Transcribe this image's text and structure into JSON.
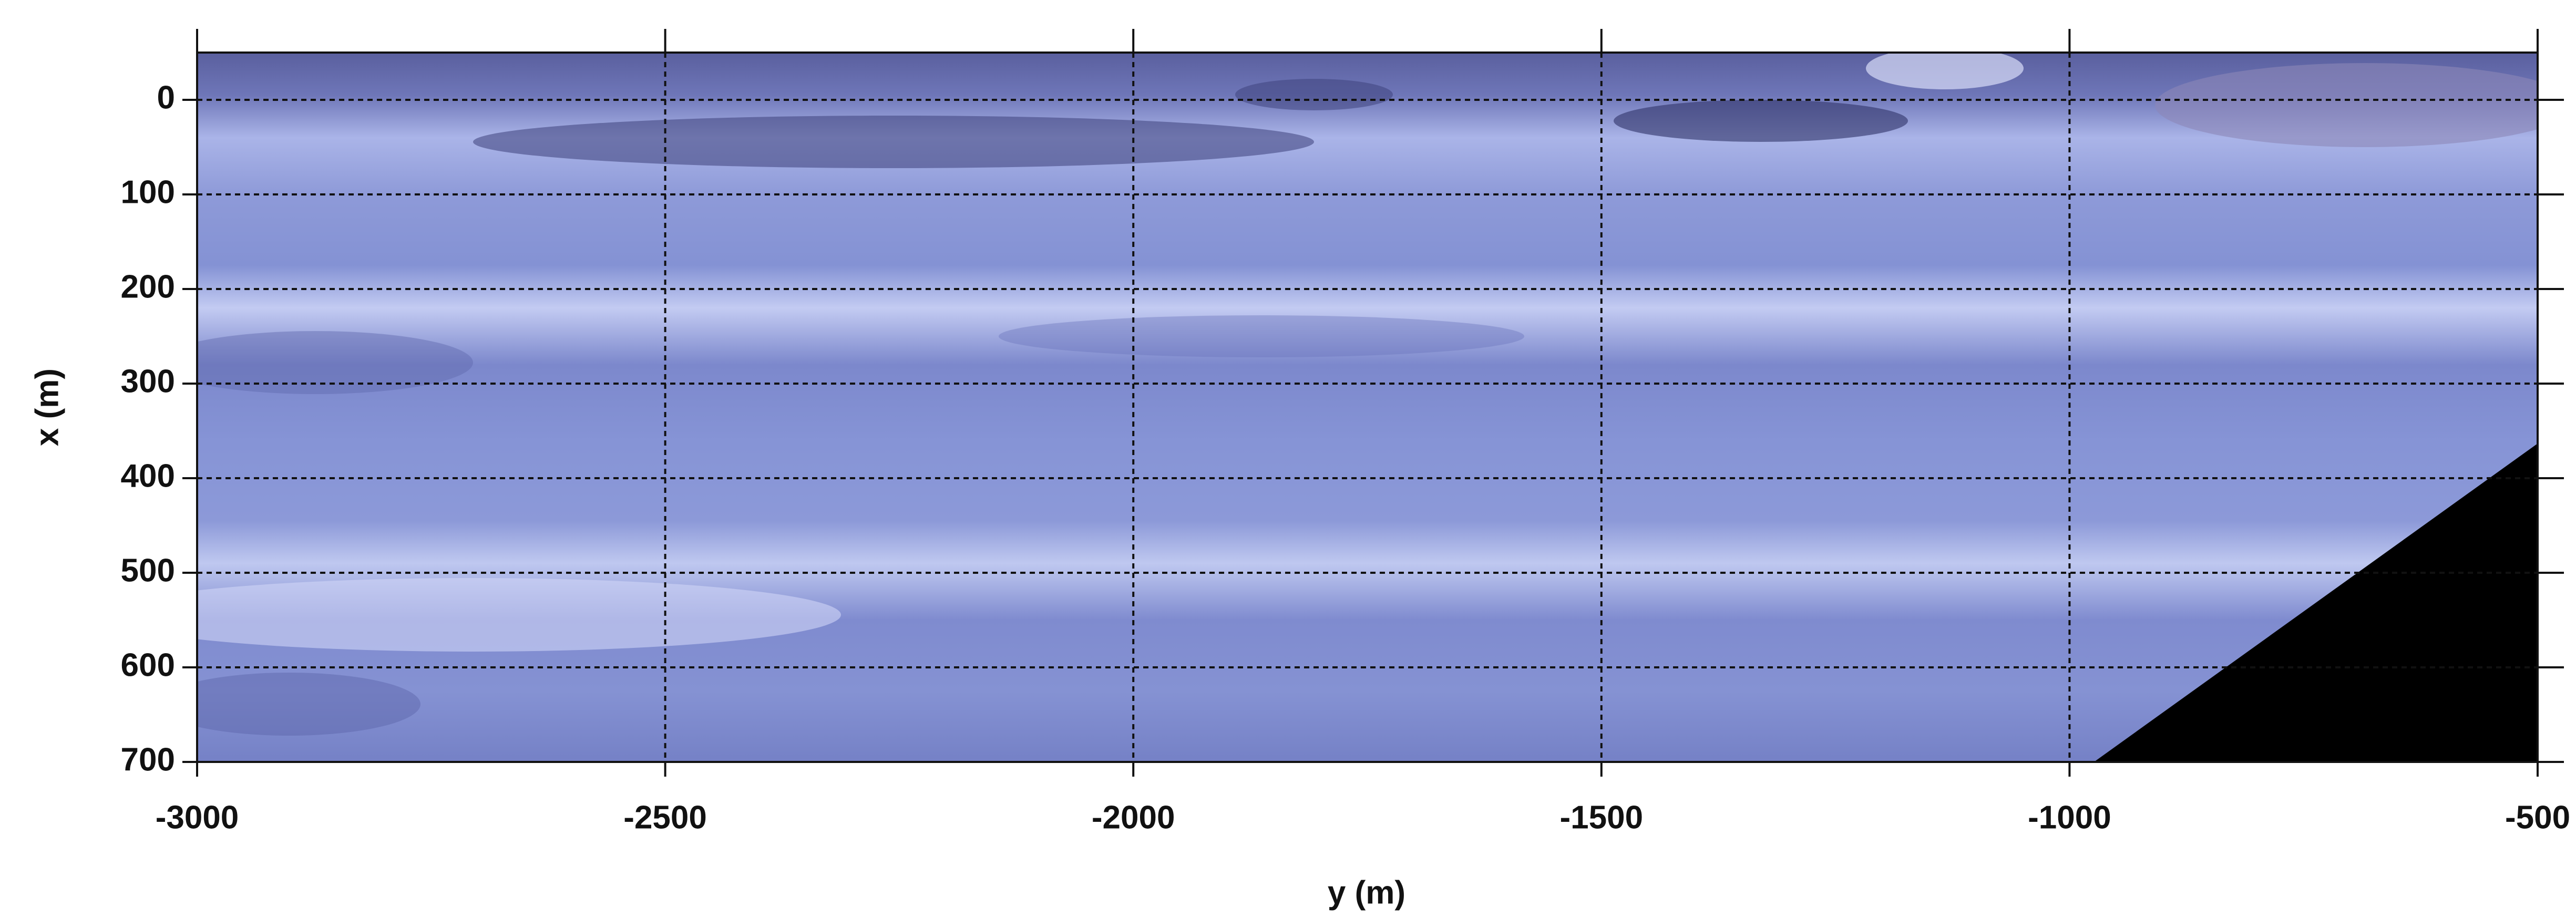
{
  "chart_data": {
    "type": "heatmap",
    "x_label": "y (m)",
    "y_label": "x (m)",
    "xlim": [
      -3000,
      -500
    ],
    "xticks": [
      -3000,
      -2500,
      -2000,
      -1500,
      -1000,
      -500
    ],
    "ylim": [
      -50,
      700
    ],
    "yticks": [
      0,
      100,
      200,
      300,
      400,
      500,
      600,
      700
    ],
    "y_inverted": true,
    "grid": true
  }
}
